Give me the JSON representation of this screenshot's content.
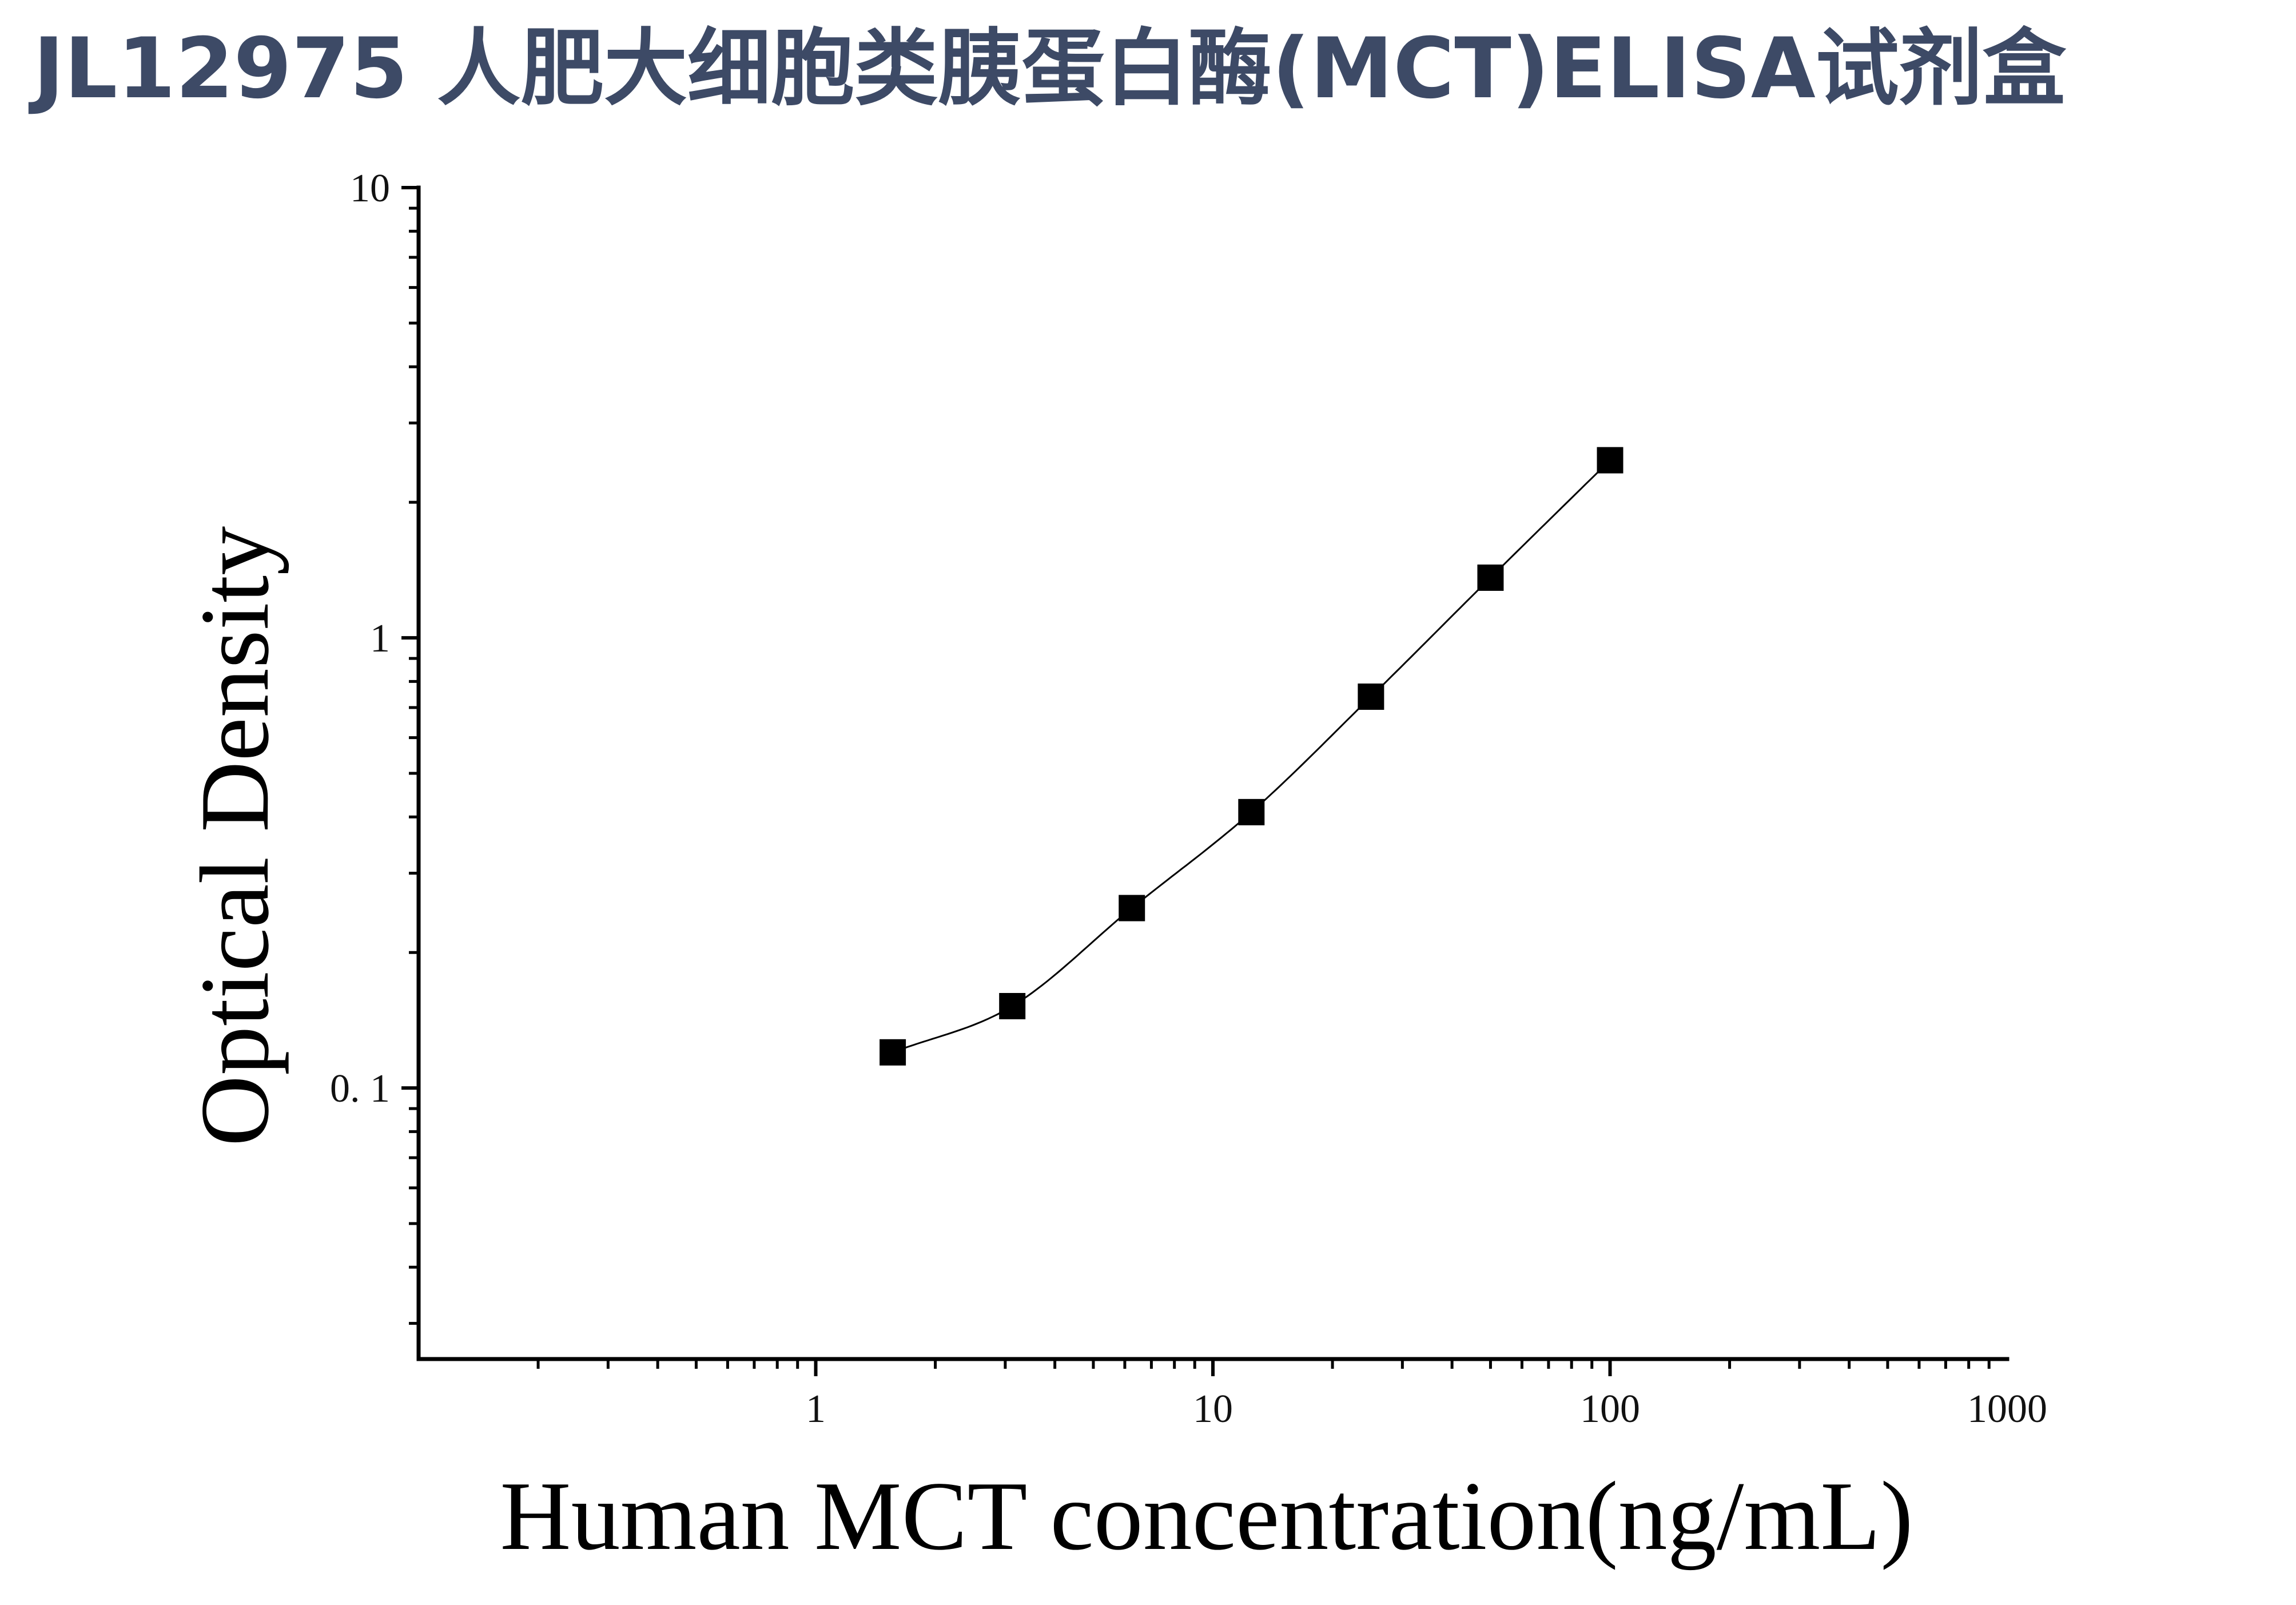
{
  "title": "JL12975 人肥大细胞类胰蛋白酶(MCT)ELISA试剂盒",
  "chart_data": {
    "type": "scatter",
    "title": "JL12975 人肥大细胞类胰蛋白酶(MCT)ELISA试剂盒",
    "xlabel": "Human MCT concentration(ng/mL)",
    "ylabel": "Optical Density",
    "x_scale": "log",
    "y_scale": "log",
    "xlim": [
      0.1,
      1000
    ],
    "ylim": [
      0.025,
      10
    ],
    "x_ticks": [
      {
        "value": 1,
        "label": "1"
      },
      {
        "value": 10,
        "label": "10"
      },
      {
        "value": 100,
        "label": "100"
      },
      {
        "value": 1000,
        "label": "1000"
      }
    ],
    "y_ticks": [
      {
        "value": 0.1,
        "label": "0. 1"
      },
      {
        "value": 1,
        "label": "1"
      },
      {
        "value": 10,
        "label": "10"
      }
    ],
    "grid": false,
    "legend": "none",
    "series": [
      {
        "marker": "square",
        "color": "#000000",
        "fit_line": true,
        "points": [
          {
            "x": 1.5625,
            "y": 0.12
          },
          {
            "x": 3.125,
            "y": 0.152
          },
          {
            "x": 6.25,
            "y": 0.251
          },
          {
            "x": 12.5,
            "y": 0.41
          },
          {
            "x": 25,
            "y": 0.74
          },
          {
            "x": 50,
            "y": 1.36
          },
          {
            "x": 100,
            "y": 2.48
          }
        ]
      }
    ]
  }
}
